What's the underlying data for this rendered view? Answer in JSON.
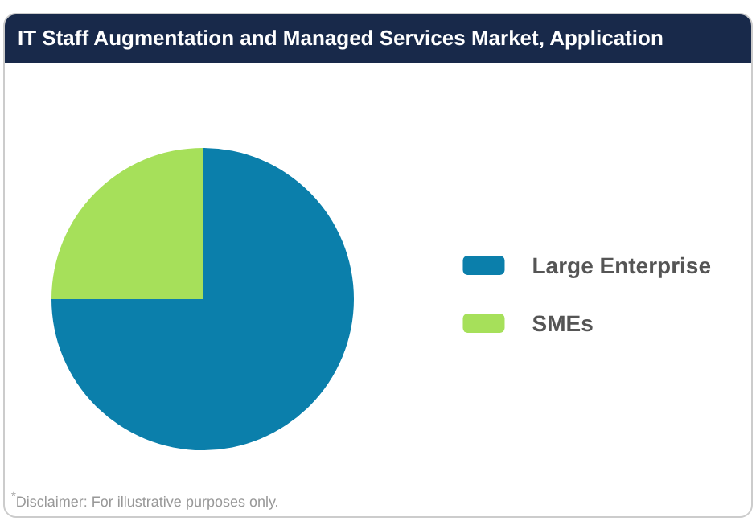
{
  "chart_data": {
    "type": "pie",
    "title": "IT Staff Augmentation and Managed Services Market, Application",
    "categories": [
      "Large Enterprise",
      "SMEs"
    ],
    "values": [
      75,
      25
    ],
    "colors": [
      "#0b7fab",
      "#a6e05a"
    ],
    "legend": "right",
    "annotations": [
      "$^{*}$Disclaimer: For illustrative purposes only."
    ]
  }
}
